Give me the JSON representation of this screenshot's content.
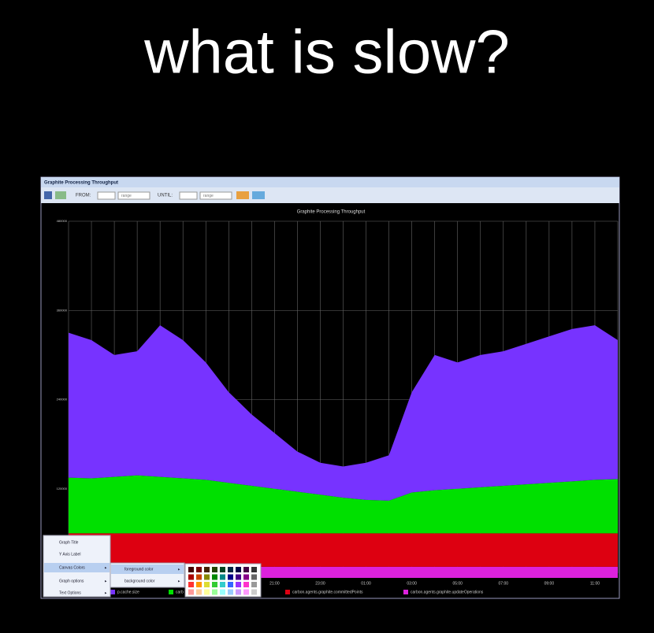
{
  "slide_title": "what is slow?",
  "window": {
    "title": "Graphite Processing Throughput",
    "toolbar": {
      "from_label": "FROM:",
      "from_range": "range",
      "until_label": "UNTIL:",
      "until_range": "range"
    }
  },
  "menu": {
    "items": [
      "Graph Title",
      "Y Axis Label",
      "Canvas Colors",
      "Graph options",
      "Text Options"
    ],
    "submenu": [
      "foreground color",
      "background color"
    ]
  },
  "chart_data": {
    "type": "area",
    "stacked": true,
    "title": "Graphite Processing Throughput",
    "categories": [
      null,
      null,
      null,
      null,
      null,
      null,
      null,
      null,
      null,
      "21:00",
      null,
      "23:00",
      null,
      "01:00",
      null,
      "03:00",
      null,
      "05:00",
      null,
      "07:00",
      null,
      "09:00",
      null,
      "11:00",
      null
    ],
    "series": [
      {
        "name": "p.cache.size",
        "color": "#7733ff",
        "values": [
          195000,
          186000,
          164000,
          167000,
          204000,
          186000,
          158000,
          122000,
          96000,
          75000,
          54000,
          43000,
          42000,
          50000,
          61000,
          135000,
          182000,
          170000,
          178000,
          181000,
          189000,
          197000,
          205000,
          208000,
          187000
        ]
      },
      {
        "name": "carb",
        "color": "#00e000",
        "values": [
          75000,
          74000,
          76000,
          78000,
          76000,
          74000,
          72000,
          68000,
          64000,
          60000,
          56000,
          52000,
          48000,
          45000,
          44000,
          55000,
          58000,
          60000,
          62000,
          64000,
          66000,
          68000,
          70000,
          72000,
          73000
        ]
      },
      {
        "name": "carbon.agents.graphite.committedPoints",
        "color": "#dd0011",
        "values": [
          45000,
          45000,
          45000,
          45000,
          45000,
          45000,
          45000,
          45000,
          45000,
          45000,
          45000,
          45000,
          45000,
          45000,
          45000,
          45000,
          45000,
          45000,
          45000,
          45000,
          45000,
          45000,
          45000,
          45000,
          45000
        ]
      },
      {
        "name": "carbon.agents.graphite.updateOperations",
        "color": "#dd22dd",
        "values": [
          15000,
          15000,
          15000,
          15000,
          15000,
          15000,
          15000,
          15000,
          15000,
          15000,
          15000,
          15000,
          15000,
          15000,
          15000,
          15000,
          15000,
          15000,
          15000,
          15000,
          15000,
          15000,
          15000,
          15000,
          15000
        ]
      }
    ],
    "ylim": [
      0,
      480000
    ],
    "yticks": [
      120000,
      240000,
      360000,
      480000
    ],
    "grid": true
  }
}
